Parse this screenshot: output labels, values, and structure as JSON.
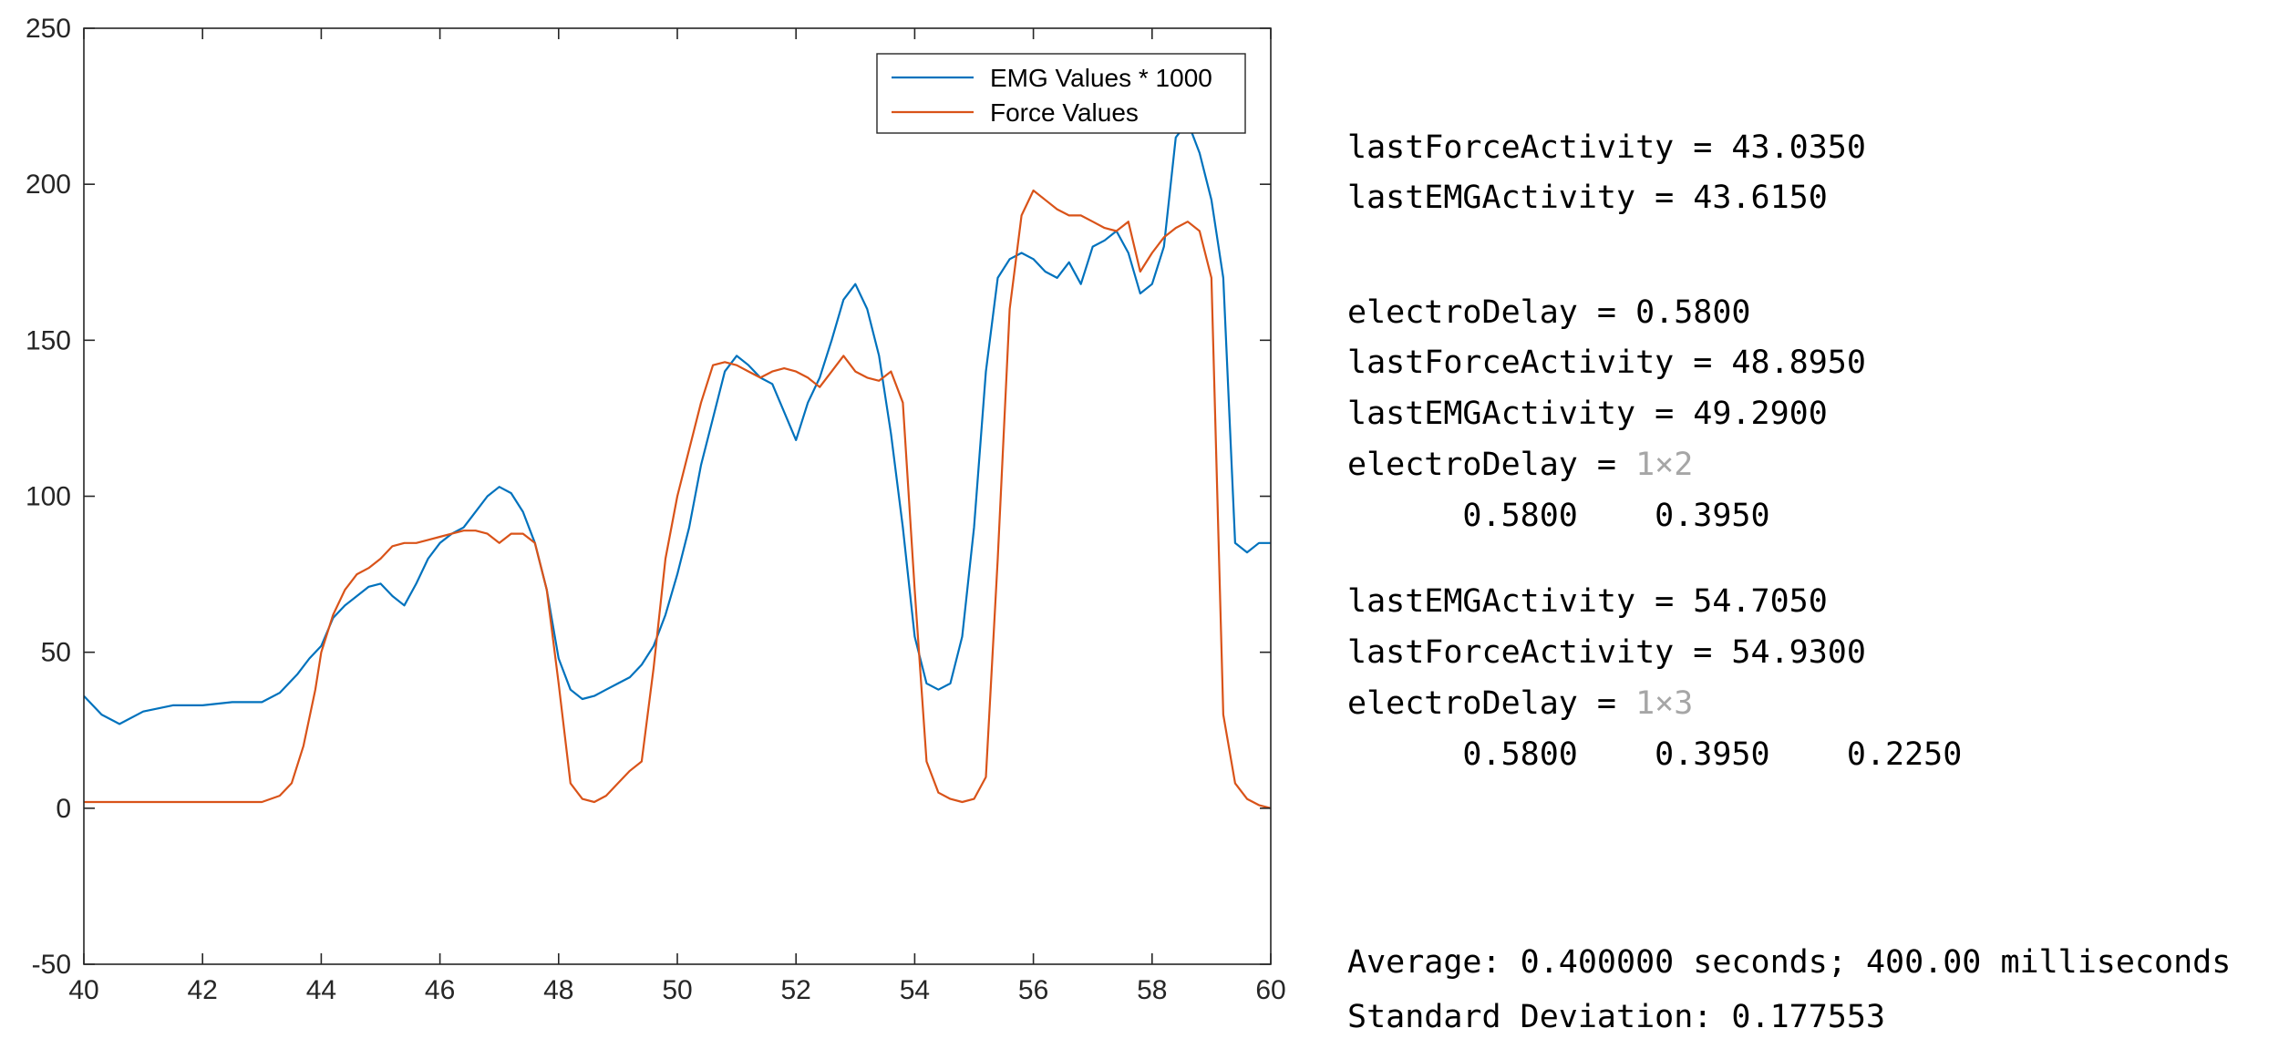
{
  "chart_data": {
    "type": "line",
    "title": "",
    "xlabel": "",
    "ylabel": "",
    "xlim": [
      40,
      60
    ],
    "ylim": [
      -50,
      250
    ],
    "x_ticks": [
      40,
      42,
      44,
      46,
      48,
      50,
      52,
      54,
      56,
      58,
      60
    ],
    "y_ticks": [
      -50,
      0,
      50,
      100,
      150,
      200,
      250
    ],
    "grid": false,
    "legend_position": "top-right",
    "series": [
      {
        "name": "EMG Values * 1000",
        "color": "#0072BD",
        "x": [
          40,
          40.3,
          40.6,
          41,
          41.5,
          42,
          42.5,
          43,
          43.3,
          43.6,
          43.8,
          44,
          44.2,
          44.4,
          44.6,
          44.8,
          45,
          45.2,
          45.4,
          45.6,
          45.8,
          46,
          46.2,
          46.4,
          46.6,
          46.8,
          47,
          47.2,
          47.4,
          47.6,
          47.8,
          48,
          48.2,
          48.4,
          48.6,
          48.8,
          49,
          49.2,
          49.4,
          49.6,
          49.8,
          50,
          50.2,
          50.4,
          50.6,
          50.8,
          51,
          51.2,
          51.4,
          51.6,
          51.8,
          52,
          52.2,
          52.4,
          52.6,
          52.8,
          53,
          53.2,
          53.4,
          53.6,
          53.8,
          54,
          54.2,
          54.4,
          54.6,
          54.8,
          55,
          55.2,
          55.4,
          55.6,
          55.8,
          56,
          56.2,
          56.4,
          56.6,
          56.8,
          57,
          57.2,
          57.4,
          57.6,
          57.8,
          58,
          58.2,
          58.4,
          58.6,
          58.8,
          59,
          59.2,
          59.4,
          59.6,
          59.8,
          60
        ],
        "values": [
          36,
          30,
          27,
          31,
          33,
          33,
          34,
          34,
          37,
          43,
          48,
          52,
          61,
          65,
          68,
          71,
          72,
          68,
          65,
          72,
          80,
          85,
          88,
          90,
          95,
          100,
          103,
          101,
          95,
          85,
          70,
          48,
          38,
          35,
          36,
          38,
          40,
          42,
          46,
          52,
          62,
          75,
          90,
          110,
          125,
          140,
          145,
          142,
          138,
          136,
          127,
          118,
          130,
          138,
          150,
          163,
          168,
          160,
          145,
          120,
          90,
          55,
          40,
          38,
          40,
          55,
          90,
          140,
          170,
          176,
          178,
          176,
          172,
          170,
          175,
          168,
          180,
          182,
          185,
          178,
          165,
          168,
          180,
          215,
          220,
          210,
          195,
          170,
          85,
          82,
          85,
          85
        ]
      },
      {
        "name": "Force Values",
        "color": "#D95319",
        "x": [
          40,
          40.5,
          41,
          41.5,
          42,
          42.5,
          43,
          43.3,
          43.5,
          43.7,
          43.9,
          44,
          44.2,
          44.4,
          44.6,
          44.8,
          45,
          45.2,
          45.4,
          45.6,
          45.8,
          46,
          46.2,
          46.4,
          46.6,
          46.8,
          47,
          47.2,
          47.4,
          47.6,
          47.8,
          48,
          48.2,
          48.4,
          48.6,
          48.8,
          49,
          49.2,
          49.4,
          49.6,
          49.8,
          50,
          50.2,
          50.4,
          50.6,
          50.8,
          51,
          51.2,
          51.4,
          51.6,
          51.8,
          52,
          52.2,
          52.4,
          52.6,
          52.8,
          53,
          53.2,
          53.4,
          53.6,
          53.8,
          54,
          54.2,
          54.4,
          54.6,
          54.8,
          55,
          55.2,
          55.4,
          55.6,
          55.8,
          56,
          56.2,
          56.4,
          56.6,
          56.8,
          57,
          57.2,
          57.4,
          57.6,
          57.8,
          58,
          58.2,
          58.4,
          58.6,
          58.8,
          59,
          59.2,
          59.4,
          59.6,
          59.8,
          60
        ],
        "values": [
          2,
          2,
          2,
          2,
          2,
          2,
          2,
          4,
          8,
          20,
          38,
          50,
          62,
          70,
          75,
          77,
          80,
          84,
          85,
          85,
          86,
          87,
          88,
          89,
          89,
          88,
          85,
          88,
          88,
          85,
          70,
          40,
          8,
          3,
          2,
          4,
          8,
          12,
          15,
          45,
          80,
          100,
          115,
          130,
          142,
          143,
          142,
          140,
          138,
          140,
          141,
          140,
          138,
          135,
          140,
          145,
          140,
          138,
          137,
          140,
          130,
          70,
          15,
          5,
          3,
          2,
          3,
          10,
          80,
          160,
          190,
          198,
          195,
          192,
          190,
          190,
          188,
          186,
          185,
          188,
          172,
          178,
          183,
          186,
          188,
          185,
          170,
          30,
          8,
          3,
          1,
          0
        ]
      }
    ]
  },
  "legend": {
    "items": [
      "EMG Values * 1000",
      "Force Values"
    ]
  },
  "console": {
    "lines": [
      {
        "text": "lastForceActivity = 43.0350",
        "dim": ""
      },
      {
        "text": "lastEMGActivity = 43.6150",
        "dim": ""
      },
      {
        "text": "electroDelay = 0.5800",
        "dim": ""
      },
      {
        "text": "lastForceActivity = 48.8950",
        "dim": ""
      },
      {
        "text": "lastEMGActivity = 49.2900",
        "dim": ""
      },
      {
        "text": "electroDelay = ",
        "dim": "1×2"
      },
      {
        "text": "      0.5800    0.3950",
        "dim": ""
      },
      {
        "text": "lastEMGActivity = 54.7050",
        "dim": ""
      },
      {
        "text": "lastForceActivity = 54.9300",
        "dim": ""
      },
      {
        "text": "electroDelay = ",
        "dim": "1×3"
      },
      {
        "text": "      0.5800    0.3950    0.2250",
        "dim": ""
      },
      {
        "text": "Average: 0.400000 seconds; 400.00 milliseconds",
        "dim": ""
      },
      {
        "text": "Standard Deviation: 0.177553",
        "dim": ""
      }
    ]
  }
}
